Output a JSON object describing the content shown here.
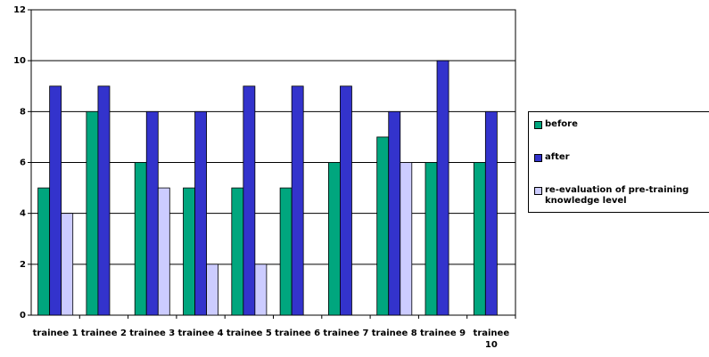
{
  "chart_data": {
    "type": "bar",
    "categories": [
      "trainee 1",
      "trainee 2",
      "trainee 3",
      "trainee 4",
      "trainee 5",
      "trainee 6",
      "trainee 7",
      "trainee 8",
      "trainee 9",
      "trainee 10"
    ],
    "series": [
      {
        "name": "before",
        "color": "#00a67e",
        "values": [
          5,
          8,
          6,
          5,
          5,
          5,
          6,
          7,
          6,
          6
        ]
      },
      {
        "name": "after",
        "color": "#3333cc",
        "values": [
          9,
          9,
          8,
          8,
          9,
          9,
          9,
          8,
          10,
          8
        ]
      },
      {
        "name": "re-evaluation of pre-training knowledge level",
        "color": "#ccccff",
        "values": [
          4,
          null,
          5,
          2,
          2,
          null,
          null,
          6,
          null,
          null
        ]
      }
    ],
    "ylim": [
      0,
      12
    ],
    "yticks": [
      0,
      2,
      4,
      6,
      8,
      10,
      12
    ],
    "grid": true,
    "legend": "right"
  }
}
